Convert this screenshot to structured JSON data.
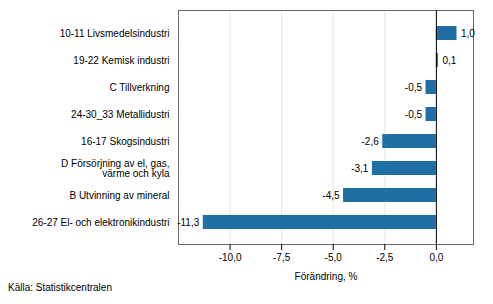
{
  "chart_data": {
    "type": "bar",
    "orientation": "horizontal",
    "categories": [
      "26-27 El- och elektronikindustri",
      "B Utvinning av mineral",
      "D Försörjning av el, gas,\nvärme och kyla",
      "16-17 Skogsindustri",
      "24-30_33 Metallidustri",
      "C Tillverkning",
      "19-22 Kemisk industri",
      "10-11 Livsmedelsindustri"
    ],
    "values": [
      -11.3,
      -4.5,
      -3.1,
      -2.6,
      -0.5,
      -0.5,
      0.1,
      1.0
    ],
    "value_labels": [
      "-11,3",
      "-4,5",
      "-3,1",
      "-2,6",
      "-0,5",
      "-0,5",
      "0,1",
      "1,0"
    ],
    "data_labels": true,
    "color": "#1f6fa4",
    "xlabel": "Förändring, %",
    "xlim": [
      -12.5,
      1.8
    ],
    "xticks": [
      {
        "value": -10.0,
        "label": "-10,0"
      },
      {
        "value": -7.5,
        "label": "-7,5"
      },
      {
        "value": -5.0,
        "label": "-5,0"
      },
      {
        "value": -2.5,
        "label": "-2,5"
      },
      {
        "value": 0.0,
        "label": "0,0"
      }
    ],
    "grid": true,
    "annotations": [
      "Källa: Statistikcentralen"
    ]
  }
}
